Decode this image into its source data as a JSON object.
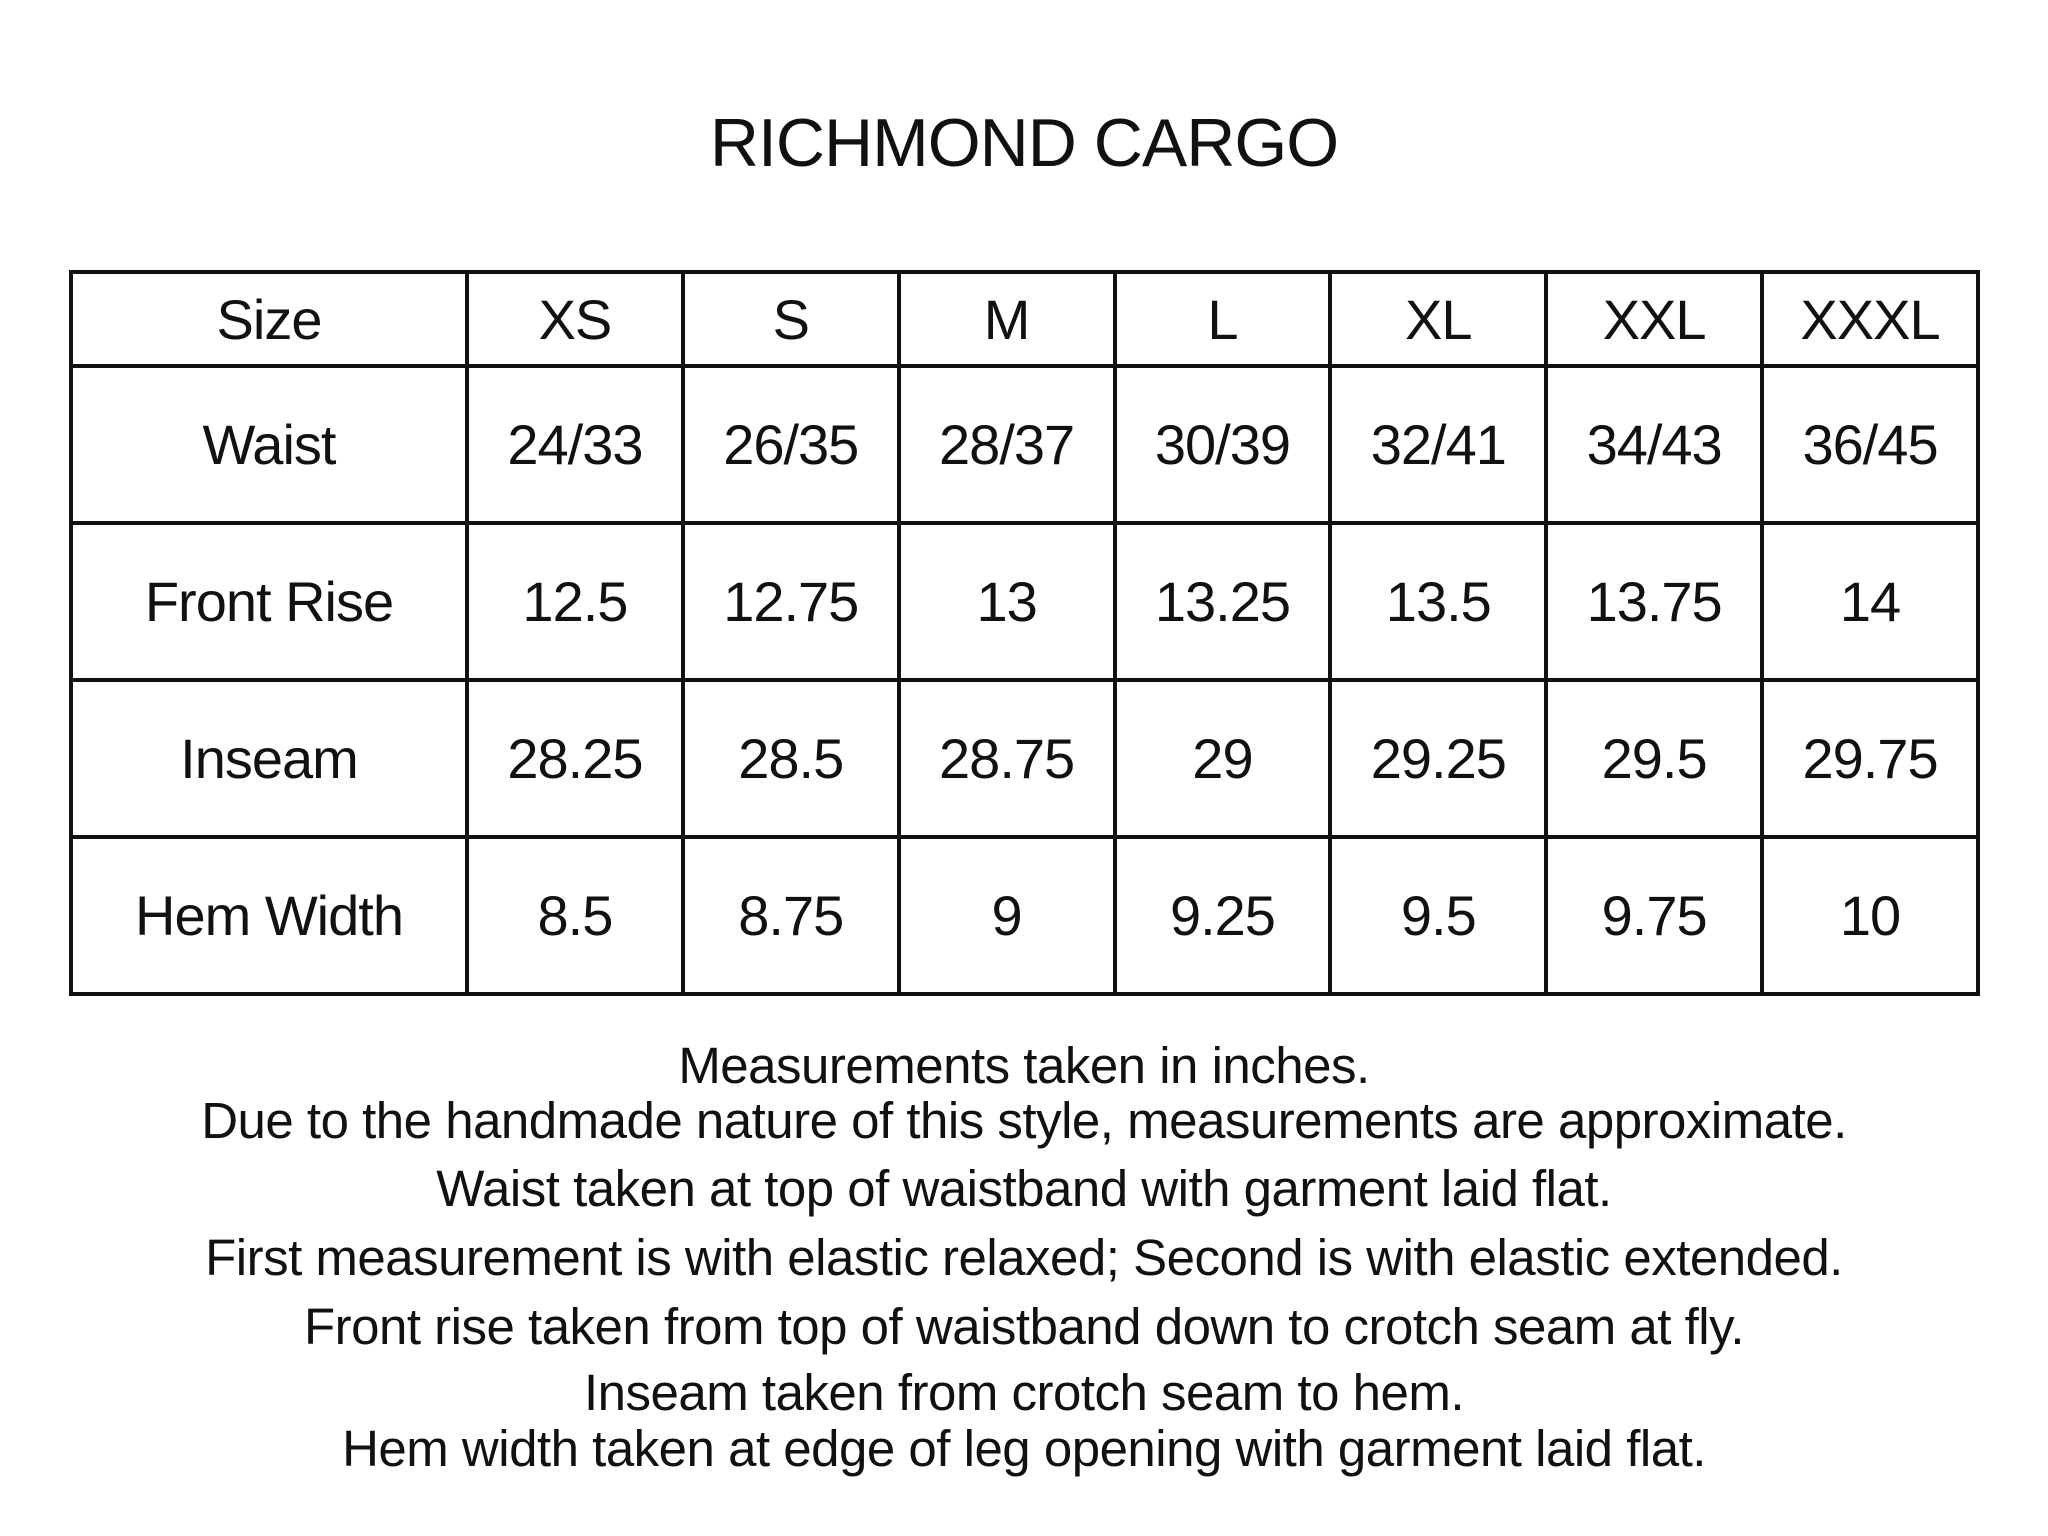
{
  "title": "RICHMOND CARGO",
  "table": {
    "header": [
      "Size",
      "XS",
      "S",
      "M",
      "L",
      "XL",
      "XXL",
      "XXXL"
    ],
    "rows": [
      [
        "Waist",
        "24/33",
        "26/35",
        "28/37",
        "30/39",
        "32/41",
        "34/43",
        "36/45"
      ],
      [
        "Front Rise",
        "12.5",
        "12.75",
        "13",
        "13.25",
        "13.5",
        "13.75",
        "14"
      ],
      [
        "Inseam",
        "28.25",
        "28.5",
        "28.75",
        "29",
        "29.25",
        "29.5",
        "29.75"
      ],
      [
        "Hem Width",
        "8.5",
        "8.75",
        "9",
        "9.25",
        "9.5",
        "9.75",
        "10"
      ]
    ]
  },
  "notes": [
    "Measurements taken in inches.",
    "Due to the handmade nature of this style, measurements are approximate.",
    "Waist taken at top of waistband with garment laid flat.",
    "First measurement is with elastic relaxed; Second is with elastic extended.",
    "Front rise taken from top of waistband down to crotch seam at fly.",
    "Inseam taken from crotch seam to hem.",
    "Hem width taken at edge of leg opening with garment laid flat."
  ]
}
